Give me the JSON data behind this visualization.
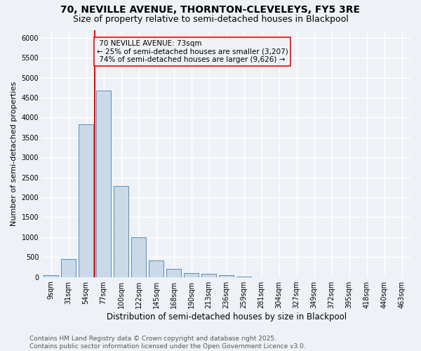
{
  "title1": "70, NEVILLE AVENUE, THORNTON-CLEVELEYS, FY5 3RE",
  "title2": "Size of property relative to semi-detached houses in Blackpool",
  "xlabel": "Distribution of semi-detached houses by size in Blackpool",
  "ylabel": "Number of semi-detached properties",
  "categories": [
    "9sqm",
    "31sqm",
    "54sqm",
    "77sqm",
    "100sqm",
    "122sqm",
    "145sqm",
    "168sqm",
    "190sqm",
    "213sqm",
    "236sqm",
    "259sqm",
    "281sqm",
    "304sqm",
    "327sqm",
    "349sqm",
    "372sqm",
    "395sqm",
    "418sqm",
    "440sqm",
    "463sqm"
  ],
  "values": [
    55,
    450,
    3830,
    4680,
    2290,
    1000,
    410,
    210,
    100,
    80,
    55,
    10,
    0,
    0,
    0,
    0,
    0,
    0,
    0,
    0,
    0
  ],
  "bar_color": "#c9d9e8",
  "bar_edge_color": "#5b8db8",
  "property_label": "70 NEVILLE AVENUE: 73sqm",
  "pct_smaller": "25%",
  "pct_smaller_count": "3,207",
  "pct_larger": "74%",
  "pct_larger_count": "9,626",
  "vline_color": "red",
  "annotation_box_color": "red",
  "ylim": [
    0,
    6200
  ],
  "yticks": [
    0,
    500,
    1000,
    1500,
    2000,
    2500,
    3000,
    3500,
    4000,
    4500,
    5000,
    5500,
    6000
  ],
  "background_color": "#eef2f7",
  "grid_color": "#ffffff",
  "footer1": "Contains HM Land Registry data © Crown copyright and database right 2025.",
  "footer2": "Contains public sector information licensed under the Open Government Licence v3.0.",
  "title_fontsize": 10,
  "subtitle_fontsize": 9,
  "xlabel_fontsize": 8.5,
  "ylabel_fontsize": 8,
  "tick_fontsize": 7,
  "footer_fontsize": 6.5,
  "annot_fontsize": 7.5
}
